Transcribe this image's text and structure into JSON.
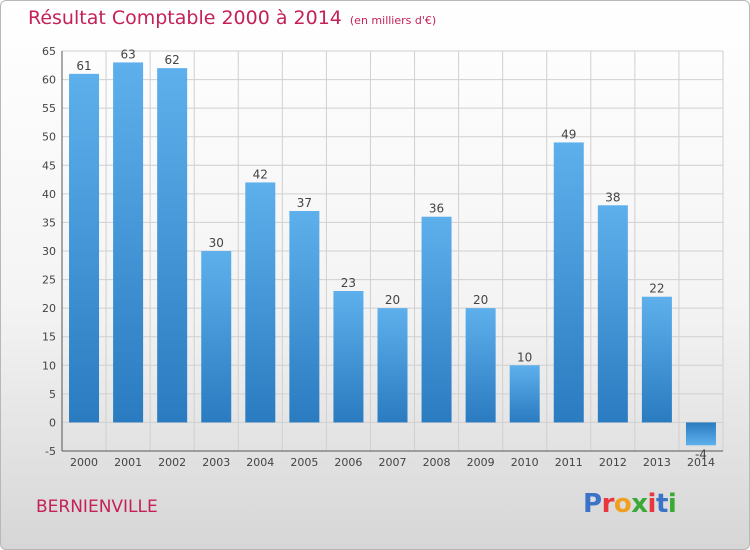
{
  "title": "Résultat Comptable 2000 à 2014",
  "subtitle": "(en milliers d'€)",
  "commune": "BERNIENVILLE",
  "logo": {
    "text": "Proxiti",
    "colors": [
      "#3b73c8",
      "#e8383d",
      "#f0a020",
      "#3aaa35",
      "#e8383d",
      "#3b73c8",
      "#3aaa35"
    ]
  },
  "colors": {
    "title": "#c4205a",
    "bar_light": "#5eb0ec",
    "bar_dark": "#2a7bc0",
    "grid": "#d0d0d0"
  },
  "chart_data": {
    "type": "bar",
    "title": "Résultat Comptable 2000 à 2014",
    "categories": [
      "2000",
      "2001",
      "2002",
      "2003",
      "2004",
      "2005",
      "2006",
      "2007",
      "2008",
      "2009",
      "2010",
      "2011",
      "2012",
      "2013",
      "2014"
    ],
    "values": [
      61,
      63,
      62,
      30,
      42,
      37,
      23,
      20,
      36,
      20,
      10,
      49,
      38,
      22,
      -4
    ],
    "value_labels": [
      "61",
      "63",
      "62",
      "30",
      "42",
      "37",
      "23",
      "20",
      "36",
      "20",
      "10",
      "49",
      "38",
      "22",
      "-4"
    ],
    "ylim": [
      -5,
      65
    ],
    "yticks": [
      -5,
      0,
      5,
      10,
      15,
      20,
      25,
      30,
      35,
      40,
      45,
      50,
      55,
      60,
      65
    ],
    "grid": true,
    "xlabel": "",
    "ylabel": ""
  }
}
